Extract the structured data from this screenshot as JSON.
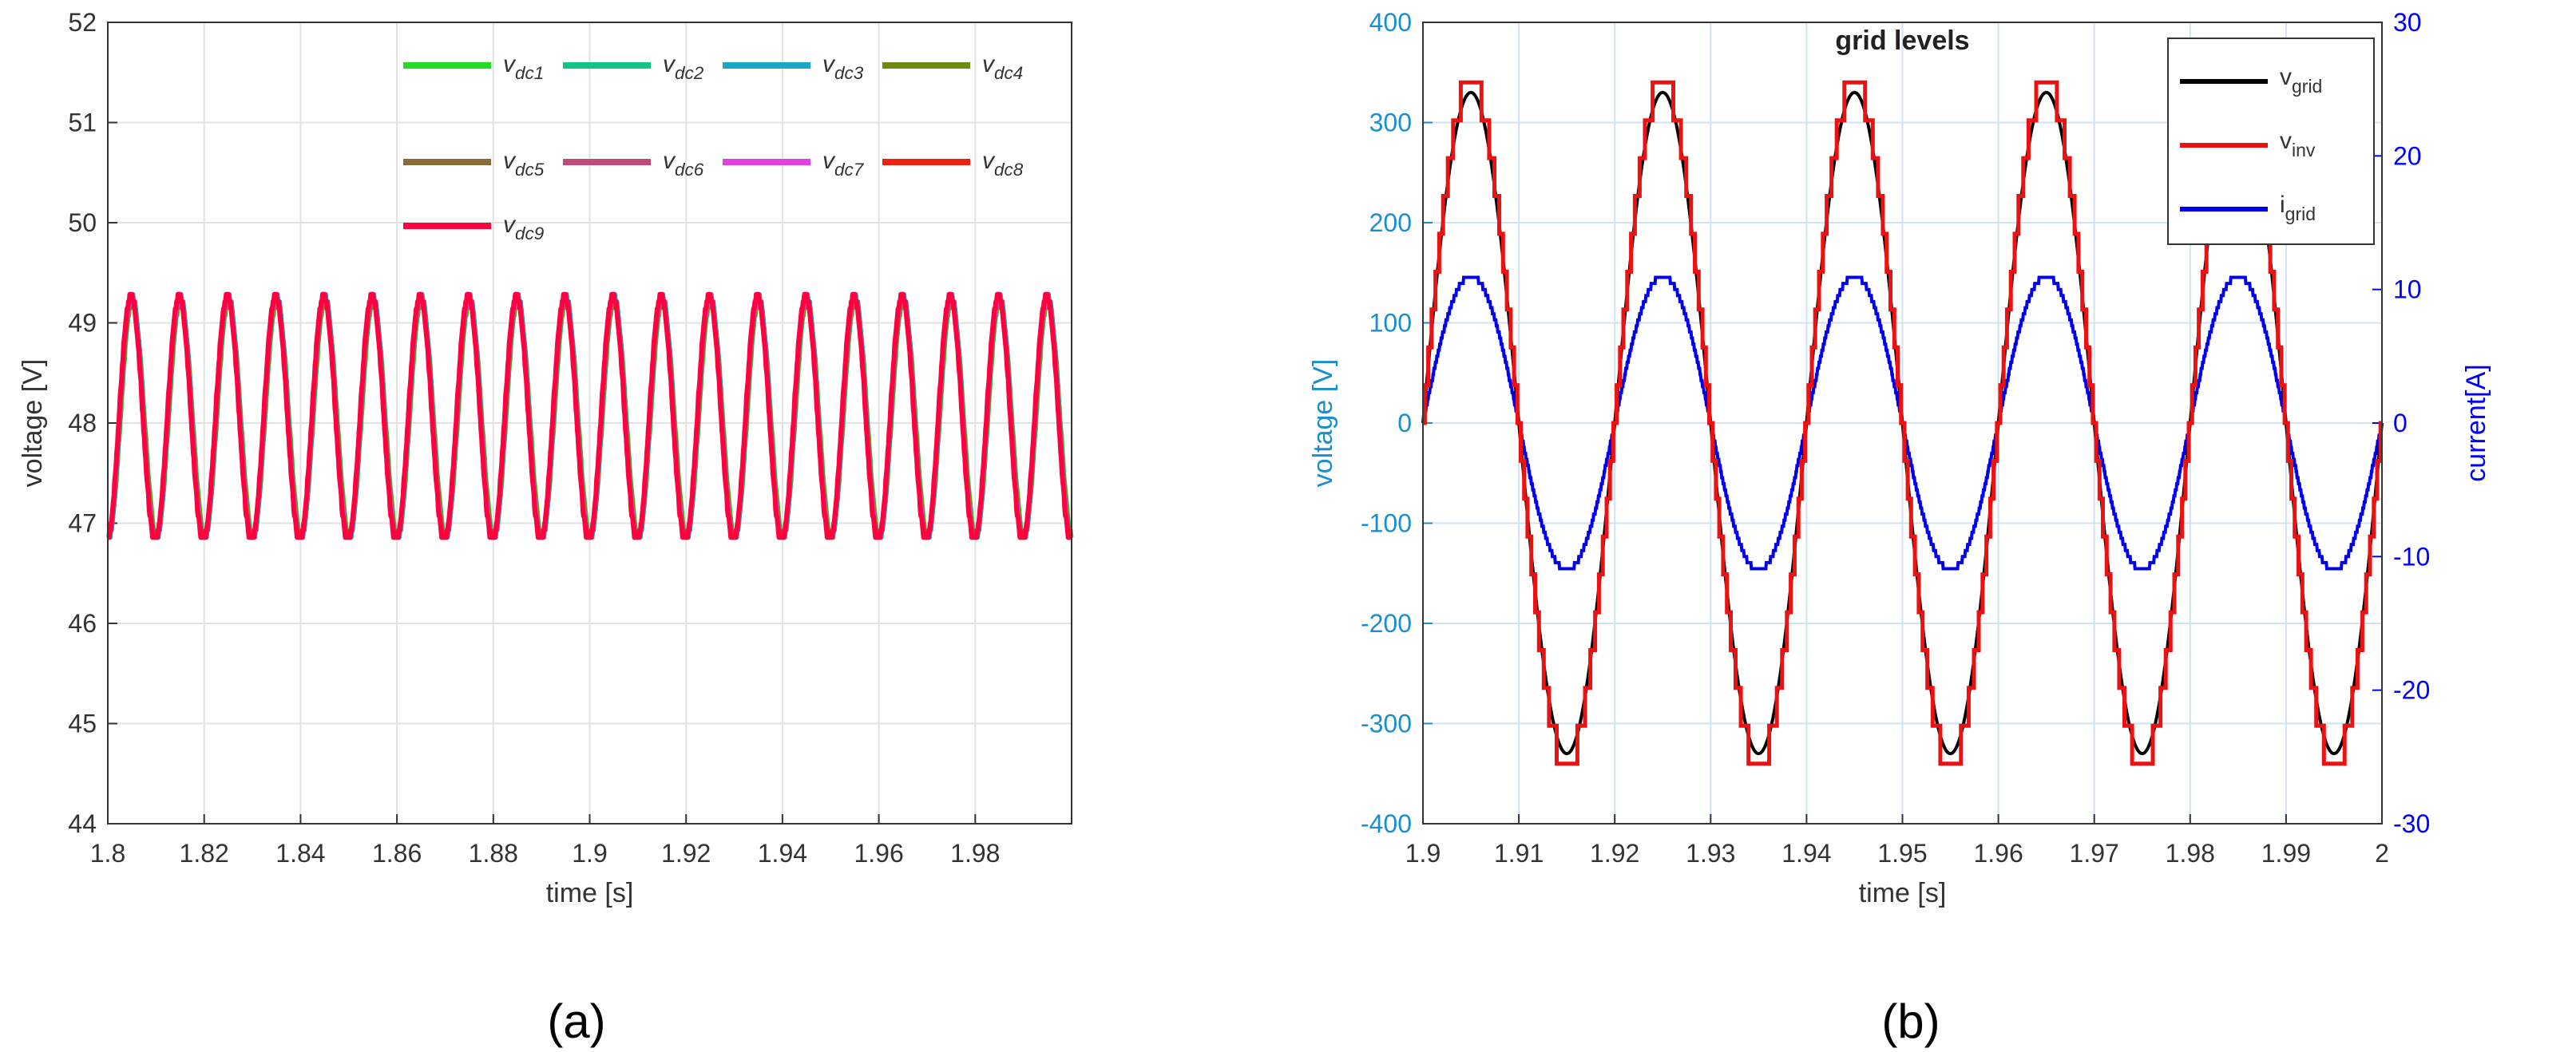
{
  "colors": {
    "axis_left_b": "#1a8fcf",
    "axis_right_b": "#0000ff"
  },
  "chart_data": [
    {
      "panel_label": "(a)",
      "type": "line",
      "title": "",
      "xlabel": "time [s]",
      "ylabel": "voltage [V]",
      "xlim": [
        1.8,
        2.0
      ],
      "ylim": [
        44,
        52
      ],
      "xticks": [
        "1.8",
        "1.82",
        "1.84",
        "1.86",
        "1.88",
        "1.9",
        "1.92",
        "1.94",
        "1.96",
        "1.98"
      ],
      "yticks": [
        "44",
        "45",
        "46",
        "47",
        "48",
        "49",
        "50",
        "51",
        "52"
      ],
      "grid": true,
      "legend_position": "top-right",
      "signal": {
        "mean": 48.05,
        "amplitude": 1.2,
        "frequency_hz": 100,
        "phase_deg": -90
      },
      "series": [
        {
          "base": "v",
          "sub": "dc1",
          "color": "#22dd22"
        },
        {
          "base": "v",
          "sub": "dc2",
          "color": "#11c58a"
        },
        {
          "base": "v",
          "sub": "dc3",
          "color": "#16a8c6"
        },
        {
          "base": "v",
          "sub": "dc4",
          "color": "#6b8a10"
        },
        {
          "base": "v",
          "sub": "dc5",
          "color": "#8a6a3a"
        },
        {
          "base": "v",
          "sub": "dc6",
          "color": "#c04a7a"
        },
        {
          "base": "v",
          "sub": "dc7",
          "color": "#e040e0"
        },
        {
          "base": "v",
          "sub": "dc8",
          "color": "#ee2211"
        },
        {
          "base": "v",
          "sub": "dc9",
          "color": "#ff0040"
        }
      ]
    },
    {
      "panel_label": "(b)",
      "type": "line",
      "title": "grid levels",
      "xlabel": "time [s]",
      "ylabel": "voltage [V]",
      "ylabel_right": "current[A]",
      "xlim": [
        1.9,
        2.0
      ],
      "ylim": [
        -400,
        400
      ],
      "ylim_right": [
        -30,
        30
      ],
      "xticks": [
        "1.9",
        "1.91",
        "1.92",
        "1.93",
        "1.94",
        "1.95",
        "1.96",
        "1.97",
        "1.98",
        "1.99",
        "2"
      ],
      "yticks": [
        "-400",
        "-300",
        "-200",
        "-100",
        "0",
        "100",
        "200",
        "300",
        "400"
      ],
      "yticks_right": [
        "-30",
        "-20",
        "-10",
        "0",
        "10",
        "20",
        "30"
      ],
      "grid": true,
      "legend_position": "top-right",
      "frequency_hz": 50,
      "series": [
        {
          "base": "v",
          "sub": "grid",
          "color": "#000000",
          "axis": "left",
          "amplitude": 330
        },
        {
          "base": "v",
          "sub": "inv",
          "color": "#ee1111",
          "axis": "left",
          "amplitude": 340,
          "stepped": true
        },
        {
          "base": "i",
          "sub": "grid",
          "color": "#0000ee",
          "axis": "right",
          "amplitude": 11
        }
      ]
    }
  ]
}
